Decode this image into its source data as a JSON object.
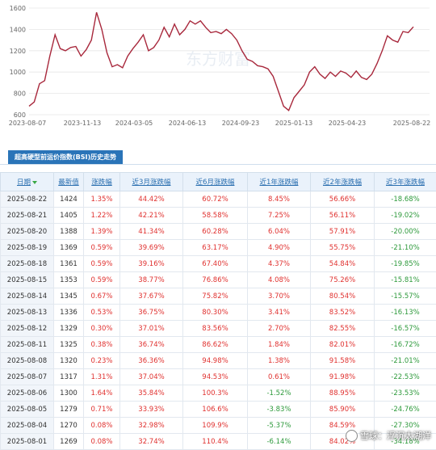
{
  "chart_data": {
    "type": "line",
    "y_ticks": [
      "1600",
      "1400",
      "1200",
      "1000",
      "800",
      "600"
    ],
    "x_ticks": [
      "2023-08-07",
      "2023-11-13",
      "2024-03-05",
      "2024-06-13",
      "2024-09-23",
      "2025-01-13",
      "2025-04-23",
      "2025-08-22"
    ],
    "ylim": [
      600,
      1600
    ],
    "grid": true,
    "line_color": "#a8283c",
    "series": [
      {
        "values": [
          680,
          720,
          890,
          920,
          1150,
          1350,
          1220,
          1200,
          1230,
          1240,
          1150,
          1210,
          1300,
          1560,
          1400,
          1180,
          1050,
          1070,
          1040,
          1150,
          1220,
          1280,
          1350,
          1200,
          1230,
          1300,
          1420,
          1330,
          1450,
          1350,
          1400,
          1480,
          1450,
          1480,
          1420,
          1370,
          1380,
          1360,
          1400,
          1360,
          1300,
          1200,
          1120,
          1100,
          1060,
          1050,
          1030,
          960,
          820,
          680,
          640,
          760,
          820,
          880,
          1000,
          1050,
          980,
          940,
          1000,
          960,
          1010,
          990,
          950,
          1010,
          950,
          930,
          980,
          1080,
          1200,
          1340,
          1300,
          1280,
          1380,
          1370,
          1424
        ]
      }
    ]
  },
  "watermark_text": "东方财富",
  "tab_label": "超高硬型前运价指数(BSI)历史走势",
  "table": {
    "headers": [
      "日期",
      "最新值",
      "涨跌幅",
      "近3月涨跌幅",
      "近6月涨跌幅",
      "近1年涨跌幅",
      "近2年涨跌幅",
      "近3年涨跌幅"
    ],
    "rows": [
      [
        "2025-08-22",
        "1424",
        "1.35%",
        "44.42%",
        "60.72%",
        "8.45%",
        "56.66%",
        "-18.68%"
      ],
      [
        "2025-08-21",
        "1405",
        "1.22%",
        "42.21%",
        "58.58%",
        "7.25%",
        "56.11%",
        "-19.02%"
      ],
      [
        "2025-08-20",
        "1388",
        "1.39%",
        "41.34%",
        "60.28%",
        "6.04%",
        "57.91%",
        "-20.00%"
      ],
      [
        "2025-08-19",
        "1369",
        "0.59%",
        "39.69%",
        "63.17%",
        "4.90%",
        "55.75%",
        "-21.10%"
      ],
      [
        "2025-08-18",
        "1361",
        "0.59%",
        "39.16%",
        "67.40%",
        "4.37%",
        "54.84%",
        "-19.85%"
      ],
      [
        "2025-08-15",
        "1353",
        "0.59%",
        "38.77%",
        "76.86%",
        "4.08%",
        "75.26%",
        "-15.81%"
      ],
      [
        "2025-08-14",
        "1345",
        "0.67%",
        "37.67%",
        "75.82%",
        "3.70%",
        "80.54%",
        "-15.57%"
      ],
      [
        "2025-08-13",
        "1336",
        "0.53%",
        "36.75%",
        "80.30%",
        "3.41%",
        "83.52%",
        "-16.13%"
      ],
      [
        "2025-08-12",
        "1329",
        "0.30%",
        "37.01%",
        "83.56%",
        "2.70%",
        "82.55%",
        "-16.57%"
      ],
      [
        "2025-08-11",
        "1325",
        "0.38%",
        "36.74%",
        "86.62%",
        "1.84%",
        "82.01%",
        "-16.72%"
      ],
      [
        "2025-08-08",
        "1320",
        "0.23%",
        "36.36%",
        "94.98%",
        "1.38%",
        "91.58%",
        "-21.01%"
      ],
      [
        "2025-08-07",
        "1317",
        "1.31%",
        "37.04%",
        "94.53%",
        "0.61%",
        "91.98%",
        "-22.53%"
      ],
      [
        "2025-08-06",
        "1300",
        "1.64%",
        "35.84%",
        "100.3%",
        "-1.52%",
        "88.95%",
        "-23.53%"
      ],
      [
        "2025-08-05",
        "1279",
        "0.71%",
        "33.93%",
        "106.6%",
        "-3.83%",
        "85.90%",
        "-24.76%"
      ],
      [
        "2025-08-04",
        "1270",
        "0.08%",
        "32.98%",
        "109.9%",
        "-5.37%",
        "84.59%",
        "-27.30%"
      ],
      [
        "2025-08-01",
        "1269",
        "0.08%",
        "32.74%",
        "110.4%",
        "-6.14%",
        "84.02%",
        "-34.18%"
      ]
    ]
  },
  "overlay_watermark": "雪球：浮沉太湖洋"
}
